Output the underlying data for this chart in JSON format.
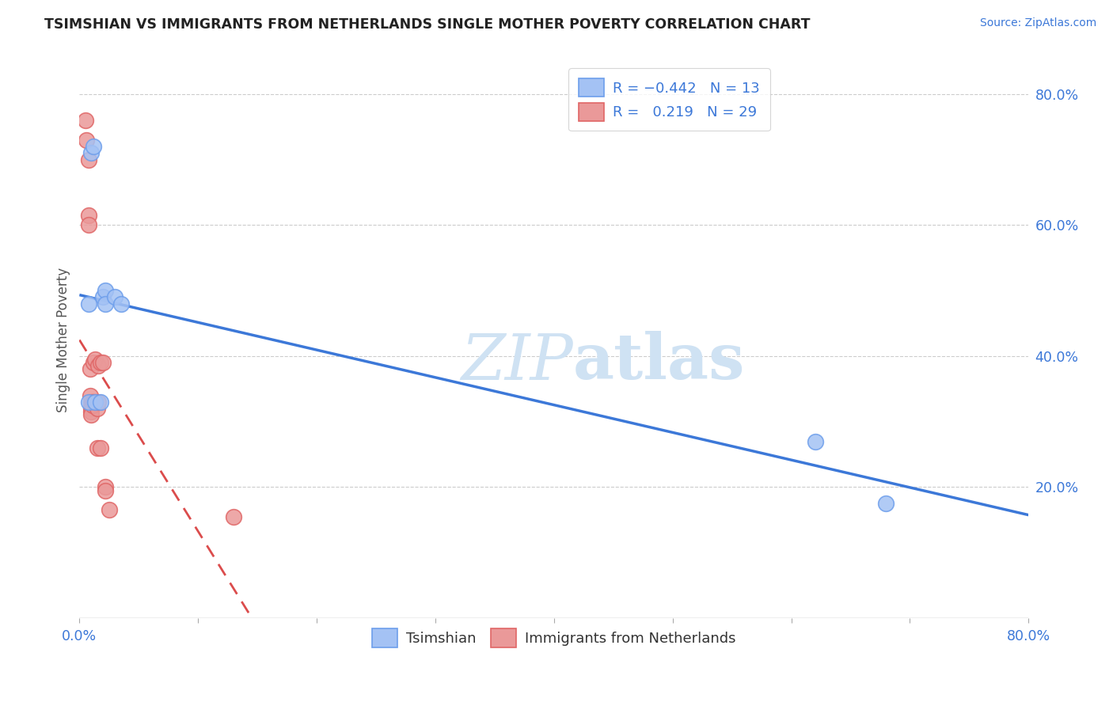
{
  "title": "TSIMSHIAN VS IMMIGRANTS FROM NETHERLANDS SINGLE MOTHER POVERTY CORRELATION CHART",
  "source": "Source: ZipAtlas.com",
  "ylabel": "Single Mother Poverty",
  "xlim": [
    0.0,
    0.8
  ],
  "ylim": [
    0.0,
    0.85
  ],
  "xtick_positions": [
    0.0,
    0.1,
    0.2,
    0.3,
    0.4,
    0.5,
    0.6,
    0.7,
    0.8
  ],
  "xtick_labels": [
    "0.0%",
    "",
    "",
    "",
    "",
    "",
    "",
    "",
    "80.0%"
  ],
  "ytick_positions": [
    0.2,
    0.4,
    0.6,
    0.8
  ],
  "ytick_labels": [
    "20.0%",
    "40.0%",
    "60.0%",
    "80.0%"
  ],
  "blue_color": "#a4c2f4",
  "blue_edge": "#6d9eeb",
  "pink_color": "#ea9999",
  "pink_edge": "#e06666",
  "blue_line_color": "#3c78d8",
  "pink_line_color": "#cc0000",
  "pink_dashed_color": "#cc0000",
  "legend_text_color": "#3c78d8",
  "grid_color": "#cccccc",
  "watermark_color": "#cfe2f3",
  "tsimshian_x": [
    0.01,
    0.012,
    0.02,
    0.022,
    0.008,
    0.022,
    0.03,
    0.035,
    0.008,
    0.013,
    0.018,
    0.62,
    0.68
  ],
  "tsimshian_y": [
    0.71,
    0.72,
    0.49,
    0.5,
    0.48,
    0.48,
    0.49,
    0.48,
    0.33,
    0.33,
    0.33,
    0.27,
    0.175
  ],
  "netherlands_x": [
    0.005,
    0.006,
    0.008,
    0.008,
    0.008,
    0.009,
    0.009,
    0.01,
    0.01,
    0.01,
    0.01,
    0.01,
    0.011,
    0.011,
    0.012,
    0.012,
    0.013,
    0.014,
    0.015,
    0.015,
    0.016,
    0.016,
    0.018,
    0.018,
    0.02,
    0.022,
    0.022,
    0.025,
    0.13
  ],
  "netherlands_y": [
    0.76,
    0.73,
    0.7,
    0.615,
    0.6,
    0.38,
    0.34,
    0.33,
    0.325,
    0.32,
    0.315,
    0.31,
    0.33,
    0.325,
    0.39,
    0.33,
    0.395,
    0.33,
    0.32,
    0.26,
    0.385,
    0.33,
    0.39,
    0.26,
    0.39,
    0.2,
    0.195,
    0.165,
    0.155
  ]
}
